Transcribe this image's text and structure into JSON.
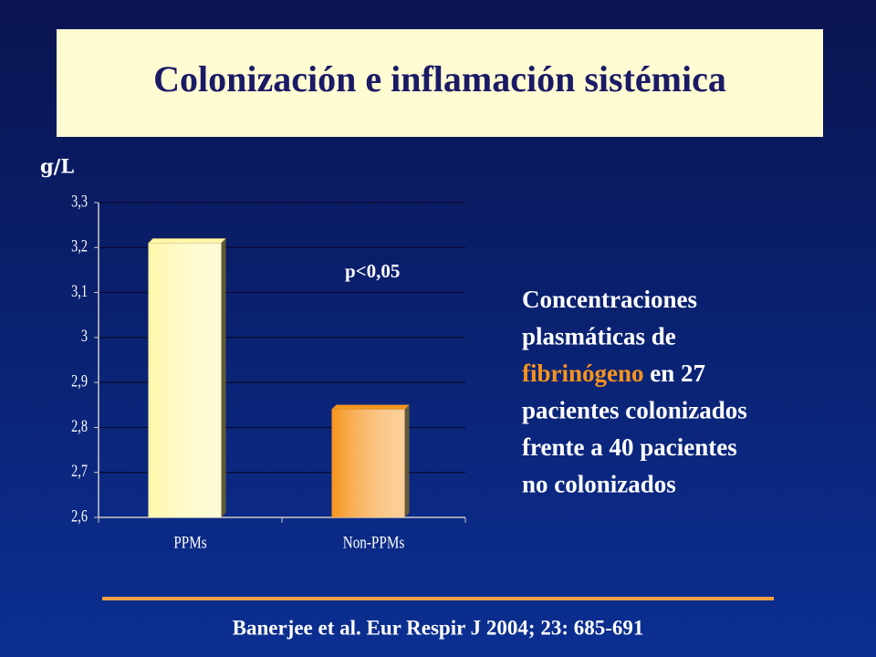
{
  "chart_data": {
    "type": "bar",
    "title": "Colonización e inflamación sistémica",
    "y_label": "g/L",
    "annotation": "p<0,05",
    "categories": [
      "PPMs",
      "Non-PPMs"
    ],
    "values": [
      3.21,
      2.84
    ],
    "colors": [
      "#fff7a8",
      "#f7941d"
    ],
    "ylim": [
      2.6,
      3.3
    ],
    "yticks": [
      {
        "value": 2.6,
        "label": "2,6"
      },
      {
        "value": 2.7,
        "label": "2,7"
      },
      {
        "value": 2.8,
        "label": "2,8"
      },
      {
        "value": 2.9,
        "label": "2,9"
      },
      3,
      {
        "value": 3.1,
        "label": "3,1"
      },
      {
        "value": 3.2,
        "label": "3,2"
      },
      {
        "value": 3.3,
        "label": "3,3"
      }
    ],
    "grid": true
  },
  "description": {
    "lines": [
      [
        {
          "text": "Concentraciones",
          "color": "#ffffff"
        }
      ],
      [
        {
          "text": "plasmáticas de",
          "color": "#ffffff"
        }
      ],
      [
        {
          "text": "fibrinógeno",
          "color": "#f7941d"
        },
        {
          "text": " en 27",
          "color": "#ffffff"
        }
      ],
      [
        {
          "text": "pacientes colonizados",
          "color": "#ffffff"
        }
      ],
      [
        {
          "text": "frente a 40 pacientes",
          "color": "#ffffff"
        }
      ],
      [
        {
          "text": "no colonizados",
          "color": "#ffffff"
        }
      ]
    ]
  },
  "citation": "Banerjee et al. Eur Respir J 2004; 23: 685-691"
}
